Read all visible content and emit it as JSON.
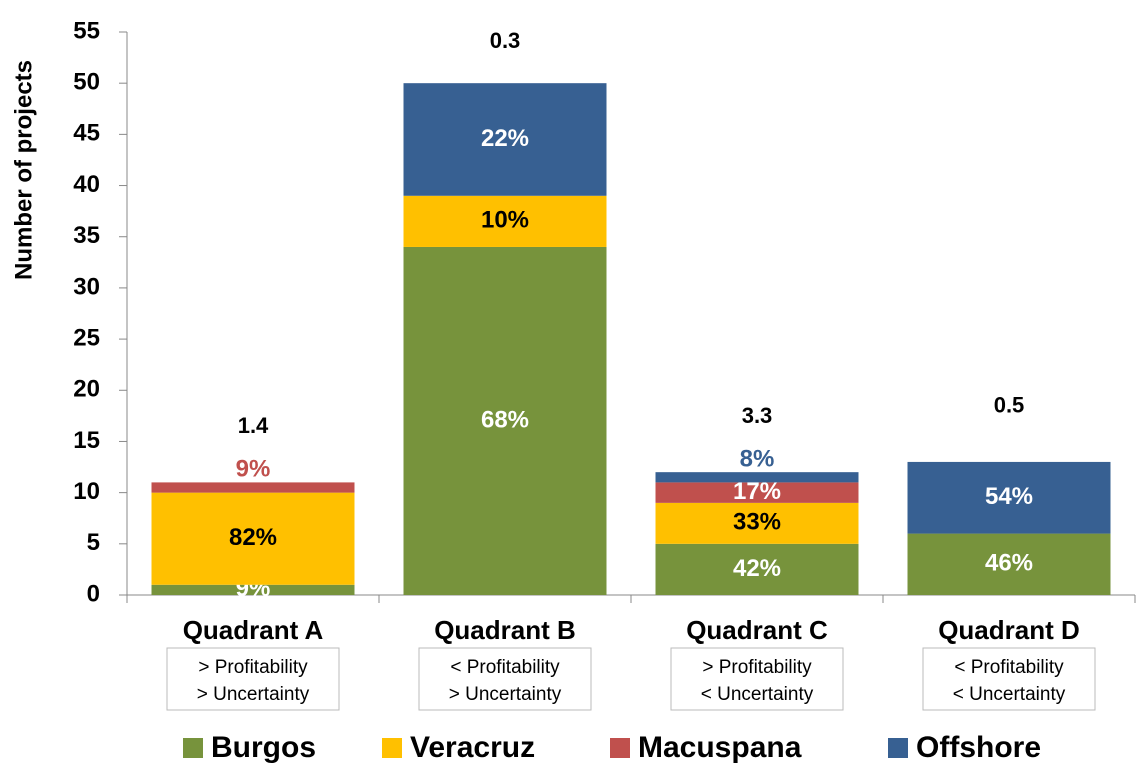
{
  "chart_data": {
    "type": "stacked-bar",
    "y_label": "Number of projects",
    "categories": [
      "Quadrant A",
      "Quadrant B",
      "Quadrant C",
      "Quadrant D"
    ],
    "category_notes": [
      [
        "> Profitability",
        "> Uncertainty"
      ],
      [
        "< Profitability",
        "> Uncertainty"
      ],
      [
        "> Profitability",
        "< Uncertainty"
      ],
      [
        "< Profitability",
        "< Uncertainty"
      ]
    ],
    "totals_annotations": [
      "1.4",
      "0.3",
      "3.3",
      "0.5"
    ],
    "series": [
      {
        "name": "Burgos",
        "color": "#77933c",
        "values": [
          1,
          34,
          5,
          6
        ],
        "segment_labels": [
          "9%",
          "68%",
          "42%",
          "46%"
        ]
      },
      {
        "name": "Veracruz",
        "color": "#ffc000",
        "values": [
          9,
          5,
          4,
          0
        ],
        "segment_labels": [
          "82%",
          "10%",
          "33%",
          null
        ]
      },
      {
        "name": "Macuspana",
        "color": "#c0504d",
        "values": [
          1,
          0,
          2,
          0
        ],
        "segment_labels": [
          "9%",
          null,
          "17%",
          null
        ]
      },
      {
        "name": "Offshore",
        "color": "#376092",
        "values": [
          0,
          11,
          1,
          7
        ],
        "segment_labels": [
          null,
          "22%",
          "8%",
          "54%"
        ]
      }
    ],
    "ylim": [
      0,
      55
    ],
    "yticks": [
      0,
      5,
      10,
      15,
      20,
      25,
      30,
      35,
      40,
      45,
      50,
      55
    ],
    "legend": "bottom"
  }
}
